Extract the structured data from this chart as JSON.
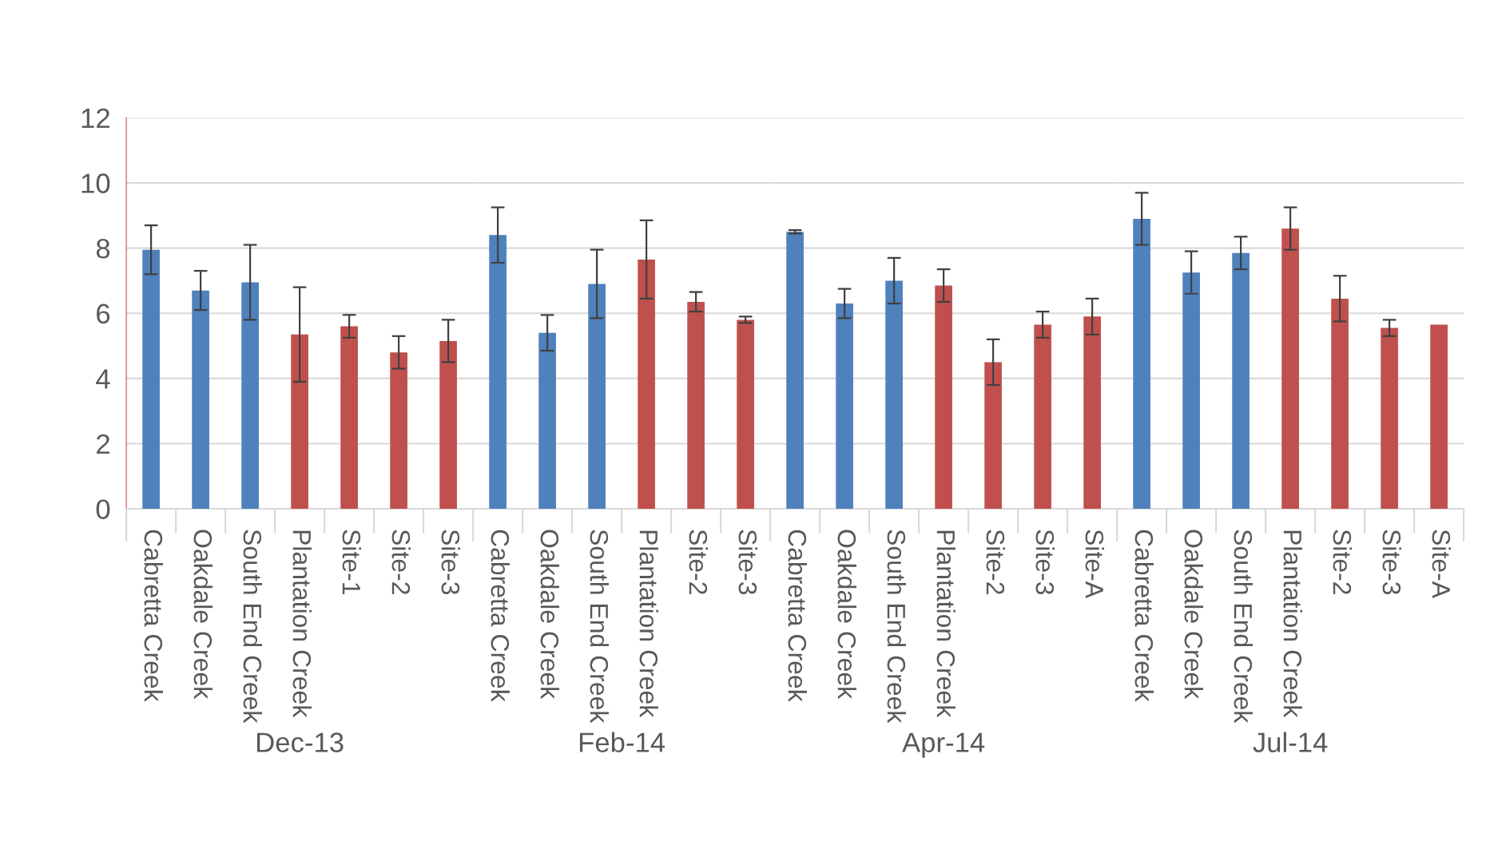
{
  "chart_data": [
    {
      "type": "bar",
      "xlabel": "Dec-13",
      "categories": [
        "Cabretta Creek",
        "Oakdale Creek",
        "South End Creek",
        "Plantation Creek",
        "Site-1",
        "Site-2",
        "Site-3"
      ],
      "values": [
        7.95,
        6.7,
        6.95,
        5.35,
        5.6,
        4.8,
        5.15
      ],
      "errors": [
        0.75,
        0.6,
        1.15,
        1.45,
        0.35,
        0.5,
        0.65
      ],
      "colors": [
        "#4f81bd",
        "#4f81bd",
        "#4f81bd",
        "#c0504d",
        "#c0504d",
        "#c0504d",
        "#c0504d"
      ],
      "ylim": [
        0,
        12
      ],
      "yticks": [
        0,
        2,
        4,
        6,
        8,
        10,
        12
      ],
      "grid": "y"
    },
    {
      "type": "bar",
      "xlabel": "Feb-14",
      "categories": [
        "Cabretta Creek",
        "Oakdale Creek",
        "South End Creek",
        "Plantation Creek",
        "Site-2",
        "Site-3"
      ],
      "values": [
        8.4,
        5.4,
        6.9,
        7.65,
        6.35,
        5.8
      ],
      "errors": [
        0.85,
        0.55,
        1.05,
        1.2,
        0.3,
        0.1
      ],
      "colors": [
        "#4f81bd",
        "#4f81bd",
        "#4f81bd",
        "#c0504d",
        "#c0504d",
        "#c0504d"
      ],
      "ylim": [
        0,
        12
      ],
      "yticks": [
        0,
        2,
        4,
        6,
        8,
        10,
        12
      ],
      "grid": "y",
      "tick_labels": "x"
    },
    {
      "type": "bar",
      "xlabel": "Apr-14",
      "categories": [
        "Cabretta Creek",
        "Oakdale Creek",
        "South End Creek",
        "Plantation Creek",
        "Site-2",
        "Site-3",
        "Site-A"
      ],
      "values": [
        8.5,
        6.3,
        7.0,
        6.85,
        4.5,
        5.65,
        5.9
      ],
      "errors": [
        0.05,
        0.45,
        0.7,
        0.5,
        0.7,
        0.4,
        0.55
      ],
      "colors": [
        "#4f81bd",
        "#4f81bd",
        "#4f81bd",
        "#c0504d",
        "#c0504d",
        "#c0504d",
        "#c0504d"
      ],
      "ylim": [
        0,
        12
      ],
      "yticks": [
        0,
        2,
        4,
        6,
        8,
        10,
        12
      ],
      "grid": "y",
      "tick_labels": "x"
    },
    {
      "type": "bar",
      "xlabel": "Jul-14",
      "categories": [
        "Cabretta Creek",
        "Oakdale Creek",
        "South End Creek",
        "Plantation Creek",
        "Site-2",
        "Site-3",
        "Site-A"
      ],
      "values": [
        8.9,
        7.25,
        7.85,
        8.6,
        6.45,
        5.55,
        5.65
      ],
      "errors": [
        0.8,
        0.65,
        0.5,
        0.65,
        0.7,
        0.25,
        null
      ],
      "colors": [
        "#4f81bd",
        "#4f81bd",
        "#4f81bd",
        "#c0504d",
        "#c0504d",
        "#c0504d",
        "#c0504d"
      ],
      "ylim": [
        0,
        12
      ],
      "yticks": [
        0,
        2,
        4,
        6,
        8,
        10,
        12
      ],
      "grid": "y",
      "tick_labels": "x"
    }
  ]
}
